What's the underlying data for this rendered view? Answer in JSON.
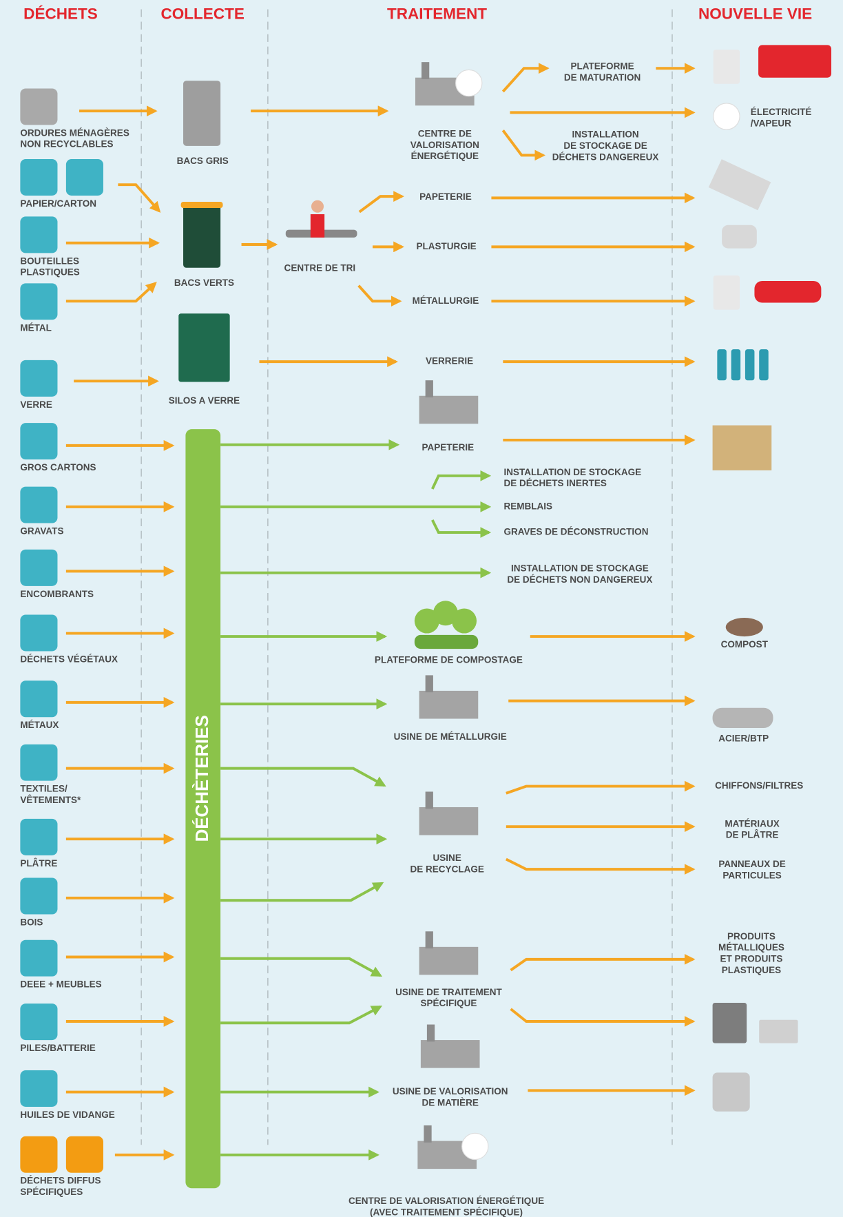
{
  "headers": [
    "DÉCHETS",
    "COLLECTE",
    "TRAITEMENT",
    "NOUVELLE VIE"
  ],
  "dechets": [
    [
      "ORDURES MÉNAGÈRES",
      "NON RECYCLABLES"
    ],
    [
      "PAPIER/CARTON"
    ],
    [
      "BOUTEILLES",
      "PLASTIQUES"
    ],
    [
      "MÉTAL"
    ],
    [
      "VERRE"
    ],
    [
      "GROS CARTONS"
    ],
    [
      "GRAVATS"
    ],
    [
      "ENCOMBRANTS"
    ],
    [
      "DÉCHETS VÉGÉTAUX"
    ],
    [
      "MÉTAUX"
    ],
    [
      "TEXTILES/",
      "VÊTEMENTS*"
    ],
    [
      "PLÂTRE"
    ],
    [
      "BOIS"
    ],
    [
      "DEEE + MEUBLES"
    ],
    [
      "PILES/BATTERIE"
    ],
    [
      "HUILES DE VIDANGE"
    ],
    [
      "DÉCHETS DIFFUS",
      "SPÉCIFIQUES"
    ]
  ],
  "collecte": [
    [
      "BACS GRIS"
    ],
    [
      "BACS VERTS"
    ],
    [
      "SILOS A VERRE"
    ],
    [
      "CENTRE DE TRI"
    ]
  ],
  "decheteries": "DÉCHÈTERIES",
  "traitement": [
    [
      "CENTRE DE",
      "VALORISATION",
      "ÉNERGÉTIQUE"
    ],
    [
      "PLATEFORME",
      "DE MATURATION"
    ],
    [
      "INSTALLATION",
      "DE STOCKAGE DE",
      "DÉCHETS DANGEREUX"
    ],
    [
      "PAPETERIE"
    ],
    [
      "PLASTURGIE"
    ],
    [
      "MÉTALLURGIE"
    ],
    [
      "VERRERIE"
    ],
    [
      "PAPETERIE"
    ],
    [
      "INSTALLATION DE STOCKAGE",
      "DE DÉCHETS INERTES"
    ],
    [
      "REMBLAIS"
    ],
    [
      "GRAVES DE DÉCONSTRUCTION"
    ],
    [
      "INSTALLATION DE STOCKAGE",
      "DE DÉCHETS NON DANGEREUX"
    ],
    [
      "PLATEFORME DE COMPOSTAGE"
    ],
    [
      "USINE DE MÉTALLURGIE"
    ],
    [
      "USINE",
      "DE RECYCLAGE"
    ],
    [
      "USINE DE TRAITEMENT",
      "SPÉCIFIQUE"
    ],
    [
      "USINE DE VALORISATION",
      "DE MATIÈRE"
    ],
    [
      "CENTRE DE VALORISATION ÉNERGÉTIQUE",
      "(AVEC TRAITEMENT SPÉCIFIQUE)"
    ]
  ],
  "nouvelle_vie": [
    [
      "ÉLECTRICITÉ",
      "/VAPEUR"
    ],
    [
      "COMPOST"
    ],
    [
      "ACIER/BTP"
    ],
    [
      "CHIFFONS/FILTRES"
    ],
    [
      "MATÉRIAUX",
      "DE PLÂTRE"
    ],
    [
      "PANNEAUX DE",
      "PARTICULES"
    ],
    [
      "PRODUITS",
      "MÉTALLIQUES",
      "ET PRODUITS",
      "PLASTIQUES"
    ]
  ]
}
